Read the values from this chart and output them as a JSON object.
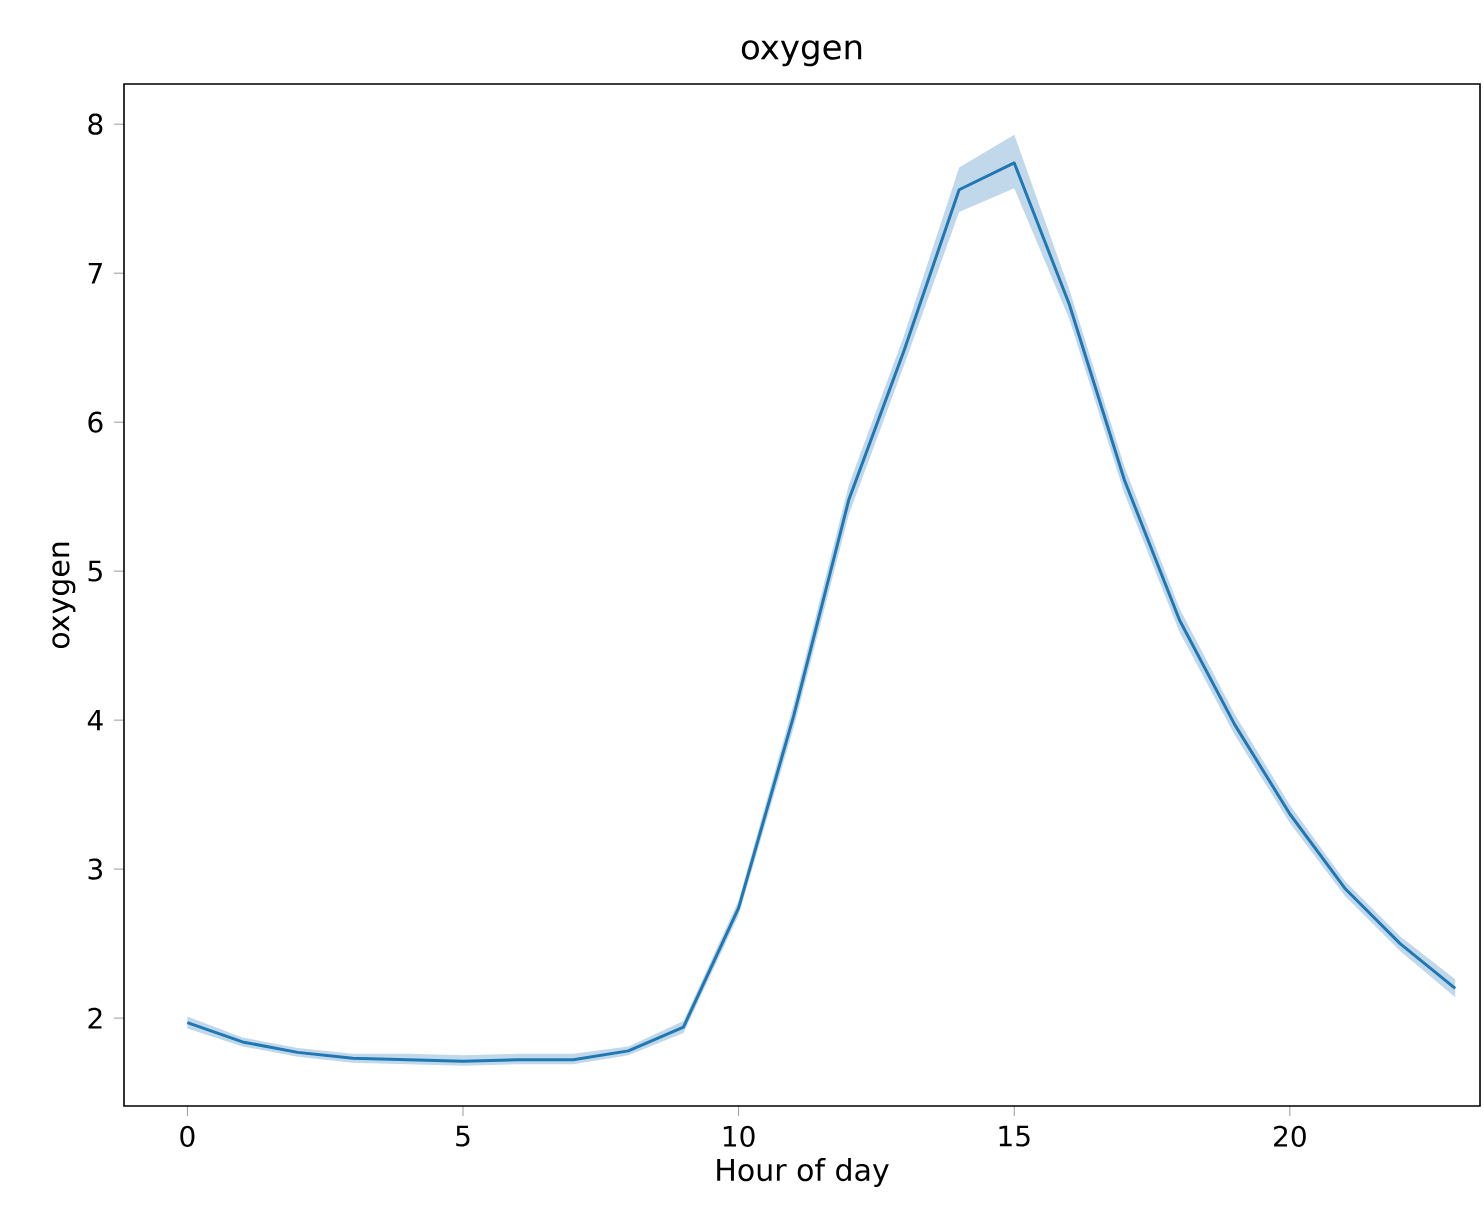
{
  "chart_data": {
    "type": "line",
    "title": "oxygen",
    "xlabel": "Hour of day",
    "ylabel": "oxygen",
    "x": [
      0,
      1,
      2,
      3,
      4,
      5,
      6,
      7,
      8,
      9,
      10,
      11,
      12,
      13,
      14,
      15,
      16,
      17,
      18,
      19,
      20,
      21,
      22,
      23
    ],
    "series": [
      {
        "color": "#1f77b4",
        "values": [
          1.97,
          1.84,
          1.77,
          1.73,
          1.72,
          1.71,
          1.72,
          1.72,
          1.78,
          1.94,
          2.74,
          4.03,
          5.48,
          6.48,
          7.56,
          7.74,
          6.79,
          5.61,
          4.67,
          3.97,
          3.37,
          2.87,
          2.5,
          2.2
        ],
        "lower": [
          1.93,
          1.81,
          1.74,
          1.7,
          1.69,
          1.68,
          1.69,
          1.69,
          1.75,
          1.9,
          2.69,
          3.95,
          5.38,
          6.38,
          7.41,
          7.57,
          6.69,
          5.52,
          4.59,
          3.9,
          3.31,
          2.82,
          2.45,
          2.14
        ],
        "upper": [
          2.01,
          1.87,
          1.8,
          1.76,
          1.76,
          1.75,
          1.76,
          1.76,
          1.81,
          1.98,
          2.79,
          4.11,
          5.58,
          6.58,
          7.71,
          7.93,
          6.89,
          5.7,
          4.75,
          4.04,
          3.43,
          2.92,
          2.55,
          2.26
        ]
      }
    ],
    "xlim": [
      -1.15,
      23.45
    ],
    "ylim": [
      1.41,
      8.27
    ],
    "xticks": [
      0,
      5,
      10,
      15,
      20
    ],
    "yticks": [
      2,
      3,
      4,
      5,
      6,
      7,
      8
    ],
    "grid": false,
    "marker": "none",
    "line_style": "solid"
  }
}
